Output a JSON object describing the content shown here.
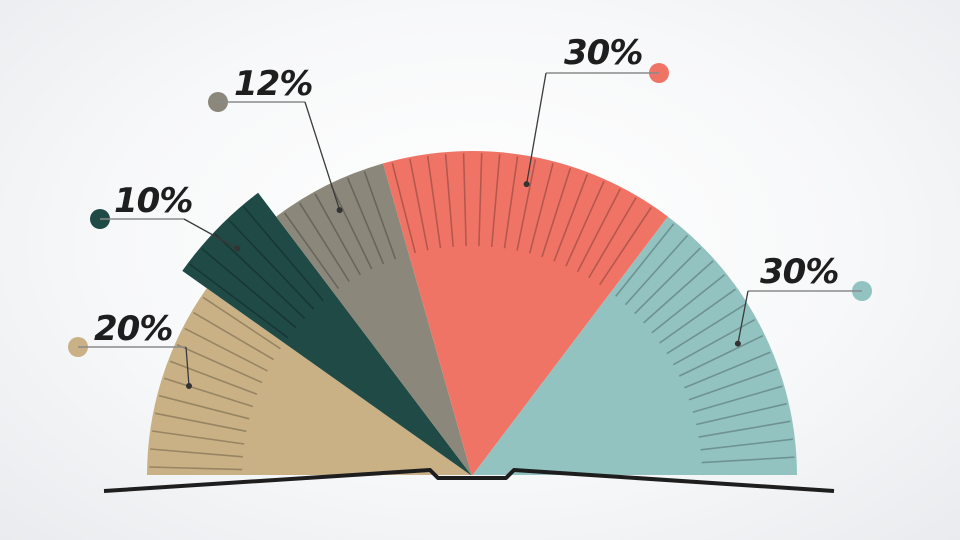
{
  "chart_data": {
    "type": "pie",
    "variant": "semicircle",
    "slices": [
      {
        "label": "20%",
        "value": 20,
        "color": "#c9b185",
        "dot": "#c9b185"
      },
      {
        "label": "10%",
        "value": 10,
        "color": "#1f4a45",
        "dot": "#1f4a45"
      },
      {
        "label": "12%",
        "value": 12,
        "color": "#8b887b",
        "dot": "#8b887b"
      },
      {
        "label": "30%",
        "value": 30,
        "color": "#f07466",
        "dot": "#f07466"
      },
      {
        "label": "30%",
        "value": 30,
        "color": "#92c3c1",
        "dot": "#92c3c1"
      }
    ],
    "legend": "none"
  }
}
